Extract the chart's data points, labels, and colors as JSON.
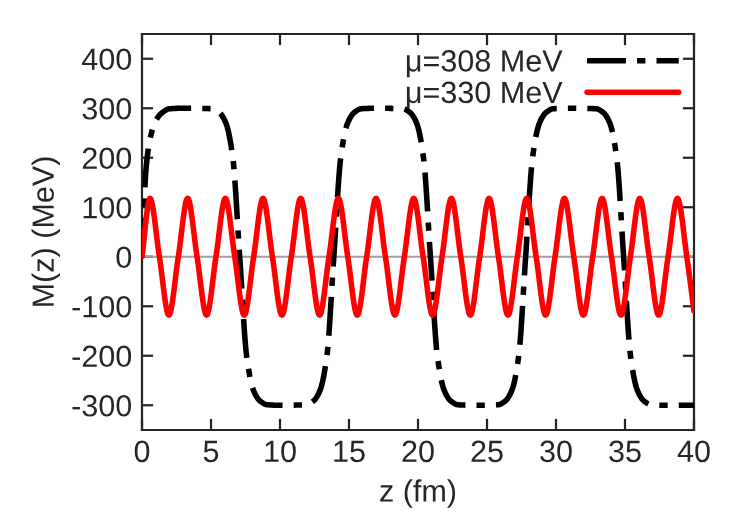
{
  "chart_data": {
    "type": "line",
    "xlabel": "z (fm)",
    "ylabel": "M(z) (MeV)",
    "xlim": [
      0,
      40
    ],
    "ylim": [
      -350,
      450
    ],
    "xticks": [
      0,
      5,
      10,
      15,
      20,
      25,
      30,
      35,
      40
    ],
    "yticks": [
      -300,
      -200,
      -100,
      0,
      100,
      200,
      300,
      400
    ],
    "legend": "top right",
    "grid": false,
    "ref_lines": [
      {
        "axis": "y",
        "value": 0,
        "color": "#a0a0a0"
      }
    ],
    "series": [
      {
        "name": "μ=308 MeV",
        "color": "#000000",
        "line_style": "dashdot",
        "x": [
          0,
          0.3,
          0.6,
          1,
          1.5,
          2,
          3,
          5.08,
          5.58,
          6.08,
          6.58,
          7.08,
          7.58,
          8.08,
          8.58,
          9.08,
          10,
          11.9,
          12.4,
          12.9,
          13.4,
          13.9,
          14.4,
          14.9,
          15.4,
          15.9,
          17,
          18.9,
          19.4,
          19.9,
          20.4,
          20.9,
          21.4,
          21.9,
          22.4,
          22.9,
          24,
          25.8,
          26.3,
          26.8,
          27.3,
          27.8,
          28.3,
          28.8,
          29.3,
          29.8,
          31,
          32.9,
          33.4,
          33.9,
          34.4,
          34.9,
          35.4,
          35.9,
          36.4,
          36.9,
          38,
          40
        ],
        "values": [
          0,
          180,
          240,
          275,
          292,
          299,
          300,
          299,
          292,
          270,
          200,
          0,
          -200,
          -270,
          -292,
          -299,
          -300,
          -299,
          -292,
          -270,
          -200,
          0,
          200,
          270,
          292,
          299,
          300,
          299,
          292,
          270,
          200,
          0,
          -200,
          -270,
          -292,
          -299,
          -300,
          -299,
          -292,
          -270,
          -200,
          0,
          200,
          270,
          292,
          299,
          300,
          299,
          292,
          270,
          200,
          0,
          -200,
          -270,
          -292,
          -299,
          -300,
          -300
        ]
      },
      {
        "name": "μ=330 MeV",
        "color": "#ff0000",
        "line_style": "solid",
        "x": [
          0,
          0.58,
          1.26,
          1.95,
          2.63,
          3.31,
          3.99,
          4.68,
          5.36,
          6.04,
          6.72,
          7.41,
          8.09,
          8.77,
          9.45,
          10.14,
          10.82,
          11.5,
          12.18,
          12.87,
          13.55,
          14.23,
          14.91,
          15.6,
          16.28,
          16.96,
          17.64,
          18.33,
          19.01,
          19.69,
          20.37,
          21.06,
          21.74,
          22.42,
          23.1,
          23.79,
          24.47,
          25.15,
          25.83,
          26.52,
          27.2,
          27.88,
          28.56,
          29.25,
          29.93,
          30.61,
          31.29,
          31.98,
          32.66,
          33.34,
          34.02,
          34.71,
          35.39,
          36.07,
          36.75,
          37.44,
          38.12,
          38.8,
          39.48,
          40
        ],
        "values": [
          0,
          118,
          0,
          -118,
          0,
          118,
          0,
          -118,
          0,
          118,
          0,
          -118,
          0,
          118,
          0,
          -118,
          0,
          118,
          0,
          -118,
          0,
          118,
          0,
          -118,
          0,
          118,
          0,
          -118,
          0,
          118,
          0,
          -118,
          0,
          118,
          0,
          -118,
          0,
          118,
          0,
          -118,
          0,
          118,
          0,
          -118,
          0,
          118,
          0,
          -118,
          0,
          118,
          0,
          -118,
          0,
          118,
          0,
          -118,
          0,
          118,
          0,
          -110
        ]
      }
    ]
  }
}
